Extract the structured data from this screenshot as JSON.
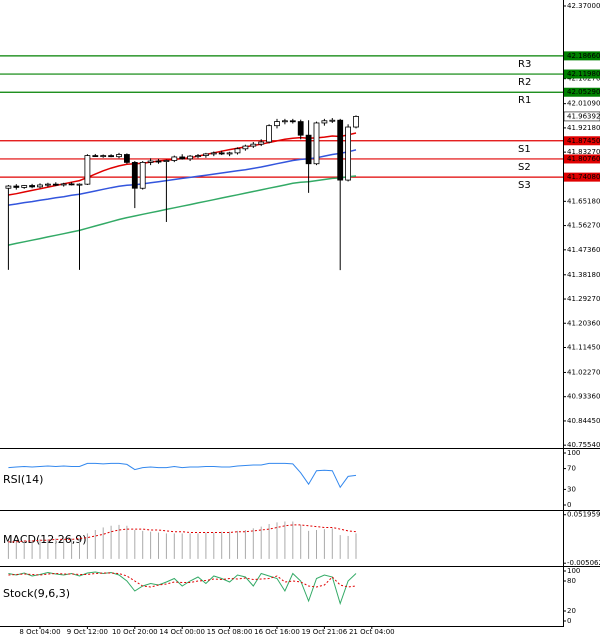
{
  "chart_data": {
    "type": "candlestick",
    "ylim": [
      40.745,
      42.392
    ],
    "yticks": [
      {
        "value": 42.37,
        "label": "42.37000"
      },
      {
        "value": 42.1027,
        "label": "42.10270"
      },
      {
        "value": 42.0109,
        "label": "42.01090"
      },
      {
        "value": 41.9218,
        "label": "41.92180"
      },
      {
        "value": 41.8327,
        "label": "41.83270"
      },
      {
        "value": 41.6518,
        "label": "41.65180"
      },
      {
        "value": 41.5627,
        "label": "41.56270"
      },
      {
        "value": 41.4736,
        "label": "41.47360"
      },
      {
        "value": 41.3818,
        "label": "41.38180"
      },
      {
        "value": 41.2927,
        "label": "41.29270"
      },
      {
        "value": 41.2036,
        "label": "41.20360"
      },
      {
        "value": 41.1145,
        "label": "41.11450"
      },
      {
        "value": 41.0227,
        "label": "41.02270"
      },
      {
        "value": 40.9336,
        "label": "40.93360"
      },
      {
        "value": 40.8445,
        "label": "40.84450"
      },
      {
        "value": 40.7554,
        "label": "40.75540"
      }
    ],
    "open": [
      41.7,
      41.708,
      41.703,
      41.71,
      41.705,
      41.712,
      41.715,
      41.712,
      41.716,
      41.714,
      41.715,
      41.82,
      41.818,
      41.82,
      41.816,
      41.824,
      41.795,
      41.7,
      41.795,
      41.8,
      41.798,
      41.802,
      41.815,
      41.808,
      41.818,
      41.82,
      41.826,
      41.83,
      41.826,
      41.83,
      41.845,
      41.855,
      41.862,
      41.87,
      41.93,
      41.945,
      41.948,
      41.945,
      41.895,
      41.79,
      41.94,
      41.948,
      41.95,
      41.73,
      41.925
    ],
    "high": [
      41.712,
      41.715,
      41.712,
      41.716,
      41.718,
      41.72,
      41.722,
      41.72,
      41.722,
      41.718,
      41.825,
      41.826,
      41.824,
      41.825,
      41.83,
      41.828,
      41.8,
      41.8,
      41.81,
      41.808,
      41.805,
      41.82,
      41.825,
      41.822,
      41.826,
      41.83,
      41.835,
      41.838,
      41.834,
      41.85,
      41.86,
      41.87,
      41.88,
      41.935,
      41.955,
      41.955,
      41.955,
      41.952,
      41.95,
      41.945,
      41.955,
      41.958,
      41.955,
      41.935,
      41.968
    ],
    "low": [
      41.4,
      41.695,
      41.698,
      41.7,
      41.7,
      41.705,
      41.708,
      41.706,
      41.71,
      41.4,
      41.712,
      41.815,
      41.812,
      41.814,
      41.81,
      41.79,
      41.627,
      41.695,
      41.785,
      41.79,
      41.576,
      41.796,
      41.805,
      41.8,
      41.81,
      41.812,
      41.818,
      41.822,
      41.818,
      41.824,
      41.838,
      41.848,
      41.855,
      41.865,
      41.92,
      41.935,
      41.938,
      41.88,
      41.683,
      41.785,
      41.93,
      41.94,
      41.399,
      41.725,
      41.92
    ],
    "close": [
      41.708,
      41.703,
      41.71,
      41.705,
      41.712,
      41.715,
      41.712,
      41.716,
      41.714,
      41.715,
      41.82,
      41.818,
      41.82,
      41.816,
      41.824,
      41.795,
      41.7,
      41.795,
      41.8,
      41.798,
      41.802,
      41.815,
      41.808,
      41.818,
      41.82,
      41.826,
      41.83,
      41.826,
      41.83,
      41.845,
      41.855,
      41.862,
      41.87,
      41.93,
      41.945,
      41.948,
      41.945,
      41.895,
      41.79,
      41.94,
      41.948,
      41.95,
      41.73,
      41.925,
      41.964
    ],
    "moving_averages": [
      {
        "color": "#e00000",
        "values": [
          41.675,
          41.68,
          41.686,
          41.692,
          41.698,
          41.704,
          41.71,
          41.716,
          41.722,
          41.728,
          41.74,
          41.752,
          41.764,
          41.774,
          41.782,
          41.788,
          41.79,
          41.792,
          41.796,
          41.8,
          41.803,
          41.806,
          41.809,
          41.812,
          41.818,
          41.824,
          41.83,
          41.836,
          41.842,
          41.847,
          41.852,
          41.857,
          41.862,
          41.868,
          41.874,
          41.88,
          41.884,
          41.886,
          41.884,
          41.885,
          41.888,
          41.892,
          41.89,
          41.896,
          41.903
        ]
      },
      {
        "color": "#3355dd",
        "values": [
          41.638,
          41.642,
          41.647,
          41.651,
          41.656,
          41.66,
          41.665,
          41.669,
          41.674,
          41.678,
          41.684,
          41.69,
          41.696,
          41.702,
          41.707,
          41.711,
          41.713,
          41.716,
          41.72,
          41.724,
          41.728,
          41.732,
          41.736,
          41.74,
          41.744,
          41.748,
          41.752,
          41.756,
          41.76,
          41.764,
          41.768,
          41.773,
          41.778,
          41.784,
          41.79,
          41.796,
          41.802,
          41.806,
          41.808,
          41.812,
          41.818,
          41.824,
          41.828,
          41.834,
          41.841
        ]
      },
      {
        "color": "#33aa66",
        "values": [
          41.491,
          41.497,
          41.503,
          41.509,
          41.515,
          41.521,
          41.527,
          41.533,
          41.539,
          41.545,
          41.553,
          41.561,
          41.569,
          41.577,
          41.585,
          41.592,
          41.598,
          41.604,
          41.61,
          41.616,
          41.622,
          41.628,
          41.634,
          41.64,
          41.646,
          41.652,
          41.658,
          41.664,
          41.67,
          41.676,
          41.682,
          41.688,
          41.694,
          41.7,
          41.706,
          41.712,
          41.718,
          41.722,
          41.724,
          41.728,
          41.732,
          41.736,
          41.738,
          41.742,
          41.745
        ]
      }
    ],
    "levels": [
      {
        "name": "R3",
        "value": 42.1866,
        "label": "42.18660",
        "color": "#008000"
      },
      {
        "name": "R2",
        "value": 42.1198,
        "label": "42.11980",
        "color": "#008000"
      },
      {
        "name": "R1",
        "value": 42.0529,
        "label": "42.05290",
        "color": "#008000"
      },
      {
        "name": "S1",
        "value": 41.8745,
        "label": "41.87450",
        "color": "#e00000"
      },
      {
        "name": "S2",
        "value": 41.8076,
        "label": "41.80760",
        "color": "#e00000"
      },
      {
        "name": "S3",
        "value": 41.7408,
        "label": "41.74080",
        "color": "#e00000"
      }
    ],
    "current": {
      "value": 41.96392,
      "label": "41.96392"
    },
    "x_labels": [
      "8 Oct 04:00",
      "9 Oct 12:00",
      "10 Oct 20:00",
      "14 Oct 00:00",
      "15 Oct 08:00",
      "16 Oct 16:00",
      "19 Oct 21:06",
      "21 Oct 04:00"
    ],
    "rsi": {
      "label": "RSI(14)",
      "color": "#3388ee",
      "ylim": [
        0,
        100
      ],
      "yticks": [
        100,
        70,
        30,
        0
      ],
      "values": [
        72,
        73,
        74,
        73,
        74,
        75,
        74,
        75,
        74,
        74,
        80,
        80,
        79,
        80,
        80,
        78,
        68,
        72,
        73,
        72,
        72,
        74,
        72,
        73,
        73,
        74,
        74,
        73,
        73,
        75,
        76,
        77,
        77,
        80,
        80,
        80,
        79,
        62,
        40,
        66,
        67,
        66,
        34,
        55,
        57
      ]
    },
    "macd": {
      "label": "MACD(12,26,9)",
      "ylim": [
        -0.006,
        0.054
      ],
      "yticks": [
        {
          "value": 0.051959,
          "label": "0.051959"
        },
        {
          "value": -0.005062,
          "label": "-0.005062"
        }
      ],
      "histogram": [
        0.02,
        0.021,
        0.022,
        0.022,
        0.023,
        0.023,
        0.024,
        0.024,
        0.024,
        0.024,
        0.03,
        0.034,
        0.037,
        0.039,
        0.04,
        0.039,
        0.034,
        0.033,
        0.032,
        0.031,
        0.03,
        0.03,
        0.03,
        0.03,
        0.03,
        0.031,
        0.031,
        0.032,
        0.032,
        0.033,
        0.034,
        0.036,
        0.038,
        0.041,
        0.043,
        0.044,
        0.044,
        0.04,
        0.033,
        0.034,
        0.035,
        0.036,
        0.028,
        0.027,
        0.03
      ],
      "signal": [
        0.02,
        0.02,
        0.021,
        0.021,
        0.022,
        0.022,
        0.023,
        0.023,
        0.023,
        0.024,
        0.025,
        0.027,
        0.029,
        0.032,
        0.034,
        0.035,
        0.035,
        0.035,
        0.034,
        0.034,
        0.033,
        0.032,
        0.032,
        0.031,
        0.031,
        0.031,
        0.031,
        0.031,
        0.031,
        0.032,
        0.032,
        0.033,
        0.034,
        0.035,
        0.037,
        0.039,
        0.04,
        0.04,
        0.039,
        0.038,
        0.037,
        0.037,
        0.035,
        0.033,
        0.032
      ]
    },
    "stoch": {
      "label": "Stock(9,6,3)",
      "ylim": [
        0,
        100
      ],
      "yticks": [
        100,
        80,
        20,
        0
      ],
      "main": [
        95,
        92,
        96,
        90,
        93,
        97,
        94,
        92,
        95,
        90,
        96,
        98,
        95,
        97,
        92,
        80,
        60,
        70,
        75,
        72,
        78,
        85,
        70,
        80,
        88,
        75,
        90,
        85,
        78,
        92,
        88,
        70,
        95,
        90,
        85,
        60,
        95,
        80,
        40,
        85,
        92,
        88,
        35,
        80,
        95
      ],
      "signal": [
        92,
        93,
        94,
        93,
        92,
        94,
        95,
        94,
        94,
        93,
        93,
        95,
        96,
        96,
        95,
        90,
        80,
        70,
        68,
        72,
        74,
        78,
        77,
        77,
        80,
        81,
        84,
        83,
        85,
        84,
        86,
        83,
        84,
        85,
        90,
        78,
        80,
        78,
        70,
        68,
        72,
        88,
        72,
        68,
        70
      ]
    }
  }
}
